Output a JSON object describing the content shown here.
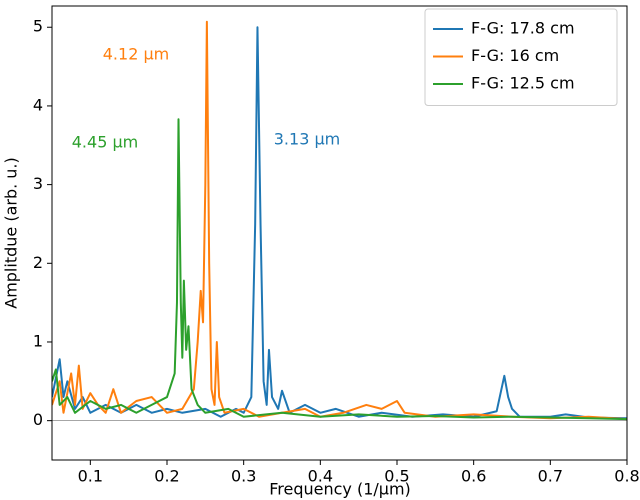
{
  "chart_data": {
    "type": "line",
    "xlabel": "Frequency (1/μm)",
    "ylabel": "Amplitdue (arb. u.)",
    "xlim": [
      0.05,
      0.8
    ],
    "ylim": [
      -0.5,
      5.27
    ],
    "xticks": [
      0.1,
      0.2,
      0.3,
      0.4,
      0.5,
      0.6,
      0.7,
      0.8
    ],
    "yticks": [
      0,
      1,
      2,
      3,
      4,
      5
    ],
    "reference_line": 0,
    "legend": "upper right",
    "series": [
      {
        "name": "F-G: 17.8 cm",
        "color": "#1f77b4",
        "x": [
          0.05,
          0.06,
          0.065,
          0.07,
          0.08,
          0.09,
          0.1,
          0.12,
          0.14,
          0.16,
          0.18,
          0.2,
          0.22,
          0.25,
          0.27,
          0.29,
          0.3,
          0.31,
          0.315,
          0.318,
          0.322,
          0.326,
          0.33,
          0.333,
          0.337,
          0.345,
          0.35,
          0.36,
          0.38,
          0.4,
          0.42,
          0.45,
          0.48,
          0.52,
          0.56,
          0.6,
          0.63,
          0.64,
          0.645,
          0.65,
          0.66,
          0.7,
          0.72,
          0.75,
          0.8
        ],
        "values": [
          0.3,
          0.78,
          0.3,
          0.5,
          0.15,
          0.3,
          0.1,
          0.2,
          0.1,
          0.2,
          0.1,
          0.15,
          0.1,
          0.15,
          0.05,
          0.15,
          0.1,
          0.3,
          2.5,
          5.0,
          2.5,
          0.5,
          0.2,
          0.9,
          0.3,
          0.15,
          0.38,
          0.1,
          0.2,
          0.1,
          0.15,
          0.05,
          0.1,
          0.05,
          0.08,
          0.05,
          0.12,
          0.57,
          0.3,
          0.15,
          0.05,
          0.05,
          0.08,
          0.04,
          0.03
        ]
      },
      {
        "name": "F-G: 16 cm",
        "color": "#ff7f0e",
        "x": [
          0.05,
          0.06,
          0.065,
          0.075,
          0.08,
          0.085,
          0.09,
          0.1,
          0.11,
          0.12,
          0.13,
          0.14,
          0.16,
          0.18,
          0.2,
          0.22,
          0.235,
          0.24,
          0.244,
          0.247,
          0.25,
          0.252,
          0.255,
          0.258,
          0.262,
          0.265,
          0.268,
          0.275,
          0.3,
          0.32,
          0.35,
          0.38,
          0.4,
          0.43,
          0.46,
          0.48,
          0.5,
          0.51,
          0.55,
          0.6,
          0.65,
          0.7,
          0.75,
          0.8
        ],
        "values": [
          0.2,
          0.5,
          0.1,
          0.6,
          0.2,
          0.7,
          0.15,
          0.35,
          0.2,
          0.1,
          0.4,
          0.1,
          0.25,
          0.3,
          0.1,
          0.15,
          0.4,
          1.0,
          1.65,
          1.25,
          3.0,
          5.07,
          2.0,
          0.4,
          0.2,
          1.0,
          0.3,
          0.1,
          0.15,
          0.05,
          0.1,
          0.15,
          0.05,
          0.1,
          0.2,
          0.15,
          0.25,
          0.1,
          0.05,
          0.08,
          0.05,
          0.03,
          0.05,
          0.02
        ]
      },
      {
        "name": "F-G: 12.5 cm",
        "color": "#2ca02c",
        "x": [
          0.05,
          0.055,
          0.06,
          0.07,
          0.08,
          0.1,
          0.12,
          0.14,
          0.16,
          0.18,
          0.2,
          0.21,
          0.213,
          0.215,
          0.218,
          0.22,
          0.222,
          0.225,
          0.228,
          0.232,
          0.24,
          0.25,
          0.28,
          0.3,
          0.35,
          0.4,
          0.45,
          0.5,
          0.55,
          0.6,
          0.65,
          0.7,
          0.75,
          0.8
        ],
        "values": [
          0.5,
          0.65,
          0.2,
          0.3,
          0.1,
          0.25,
          0.15,
          0.2,
          0.1,
          0.2,
          0.3,
          0.6,
          1.5,
          3.83,
          1.5,
          0.8,
          1.78,
          0.9,
          1.2,
          0.4,
          0.2,
          0.1,
          0.15,
          0.05,
          0.1,
          0.05,
          0.08,
          0.05,
          0.06,
          0.04,
          0.05,
          0.04,
          0.03,
          0.02
        ]
      }
    ],
    "annotations": [
      {
        "text": "4.12 μm",
        "color": "#ff7f0e"
      },
      {
        "text": "4.45 μm",
        "color": "#2ca02c"
      },
      {
        "text": "3.13 μm",
        "color": "#1f77b4"
      }
    ]
  }
}
